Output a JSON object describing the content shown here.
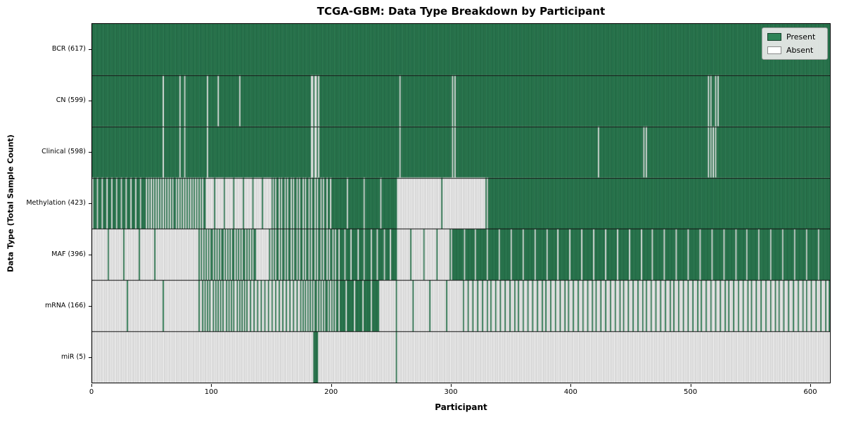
{
  "title": "TCGA-GBM: Data Type Breakdown by Participant",
  "xlabel": "Participant",
  "ylabel": "Data Type (Total Sample Count)",
  "legend": {
    "present_label": "Present",
    "absent_label": "Absent"
  },
  "colors": {
    "present": "#2e8457",
    "present_edge": "rgba(16,48,32,0.65)",
    "absent": "#ffffff",
    "absent_edge": "rgba(115,115,115,0.65)",
    "separator": "#111111"
  },
  "x_ticks": [
    0,
    100,
    200,
    300,
    400,
    500,
    600
  ],
  "chart_data": {
    "type": "heatmap",
    "title": "TCGA-GBM: Data Type Breakdown by Participant",
    "xlabel": "Participant",
    "ylabel": "Data Type (Total Sample Count)",
    "x_range": [
      0,
      617
    ],
    "n_participants": 617,
    "legend_position": "upper right",
    "rows": [
      {
        "label": "BCR (617)",
        "name": "BCR",
        "present_count": 617,
        "segments": [
          [
            0,
            617,
            1.0
          ]
        ]
      },
      {
        "label": "CN (599)",
        "name": "CN",
        "present_count": 599,
        "absent_participants": [
          59,
          73,
          77,
          96,
          105,
          123,
          183,
          184,
          186,
          187,
          189,
          257,
          301,
          303,
          515,
          517,
          521,
          523
        ]
      },
      {
        "label": "Clinical (598)",
        "name": "Clinical",
        "present_count": 598,
        "absent_participants": [
          59,
          73,
          77,
          96,
          183,
          184,
          186,
          187,
          189,
          257,
          301,
          303,
          423,
          461,
          463,
          515,
          517,
          519,
          521
        ]
      },
      {
        "label": "Methylation (423)",
        "name": "Methylation",
        "present_count": 423,
        "segments": [
          [
            0,
            45,
            0.75
          ],
          [
            45,
            95,
            0.52
          ],
          [
            95,
            151,
            0.12
          ],
          [
            151,
            199,
            0.6
          ],
          [
            199,
            255,
            0.93
          ],
          [
            255,
            330,
            0.03
          ],
          [
            330,
            617,
            0.995
          ]
        ]
      },
      {
        "label": "MAF (396)",
        "name": "MAF",
        "present_count": 396,
        "segments": [
          [
            0,
            53,
            0.08
          ],
          [
            53,
            90,
            0.02
          ],
          [
            90,
            137,
            0.55
          ],
          [
            137,
            149,
            0.1
          ],
          [
            149,
            206,
            0.6
          ],
          [
            206,
            255,
            0.82
          ],
          [
            255,
            300,
            0.08
          ],
          [
            300,
            311,
            0.9
          ],
          [
            311,
            617,
            0.9
          ]
        ]
      },
      {
        "label": "mRNA (166)",
        "name": "mRNA",
        "present_count": 166,
        "segments": [
          [
            0,
            90,
            0.03
          ],
          [
            90,
            130,
            0.45
          ],
          [
            130,
            177,
            0.35
          ],
          [
            177,
            206,
            0.55
          ],
          [
            206,
            240,
            0.85
          ],
          [
            240,
            311,
            0.07
          ],
          [
            311,
            617,
            0.26
          ]
        ]
      },
      {
        "label": "miR (5)",
        "name": "miR",
        "present_count": 5,
        "present_participants": [
          185,
          186,
          187,
          188,
          254
        ]
      }
    ]
  }
}
